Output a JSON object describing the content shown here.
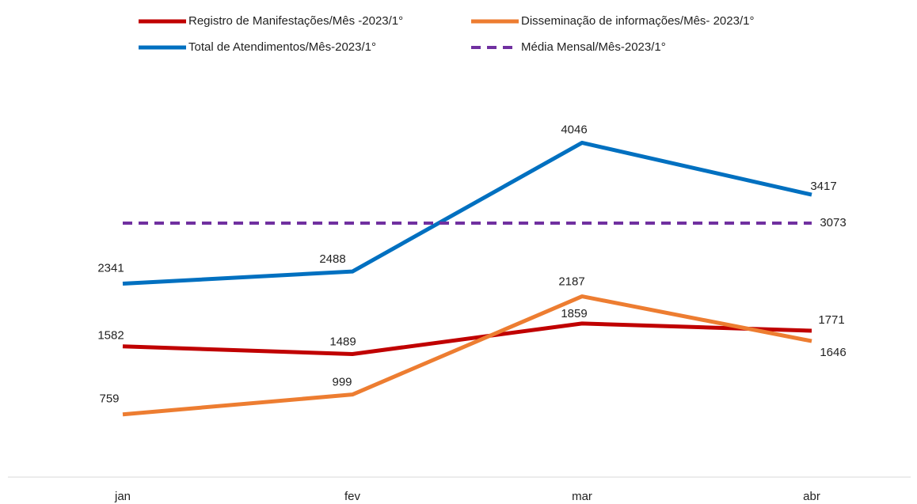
{
  "chart_data": {
    "type": "line",
    "categories": [
      "jan",
      "fev",
      "mar",
      "abr"
    ],
    "series": [
      {
        "name": "Registro de Manifestações/Mês -2023/1°",
        "color": "#c00000",
        "values": [
          1582,
          1489,
          1859,
          1771
        ]
      },
      {
        "name": "Disseminação de informações/Mês- 2023/1°",
        "color": "#ed7d31",
        "values": [
          759,
          999,
          2187,
          1646
        ]
      },
      {
        "name": "Total de Atendimentos/Mês-2023/1°",
        "color": "#0070c0",
        "values": [
          2341,
          2488,
          4046,
          3417
        ]
      },
      {
        "name": "Média Mensal/Mês-2023/1°",
        "color": "#7030a0",
        "dashed": true,
        "values": [
          3073,
          3073,
          3073,
          3073
        ]
      }
    ],
    "ylim": [
      0,
      4500
    ]
  }
}
